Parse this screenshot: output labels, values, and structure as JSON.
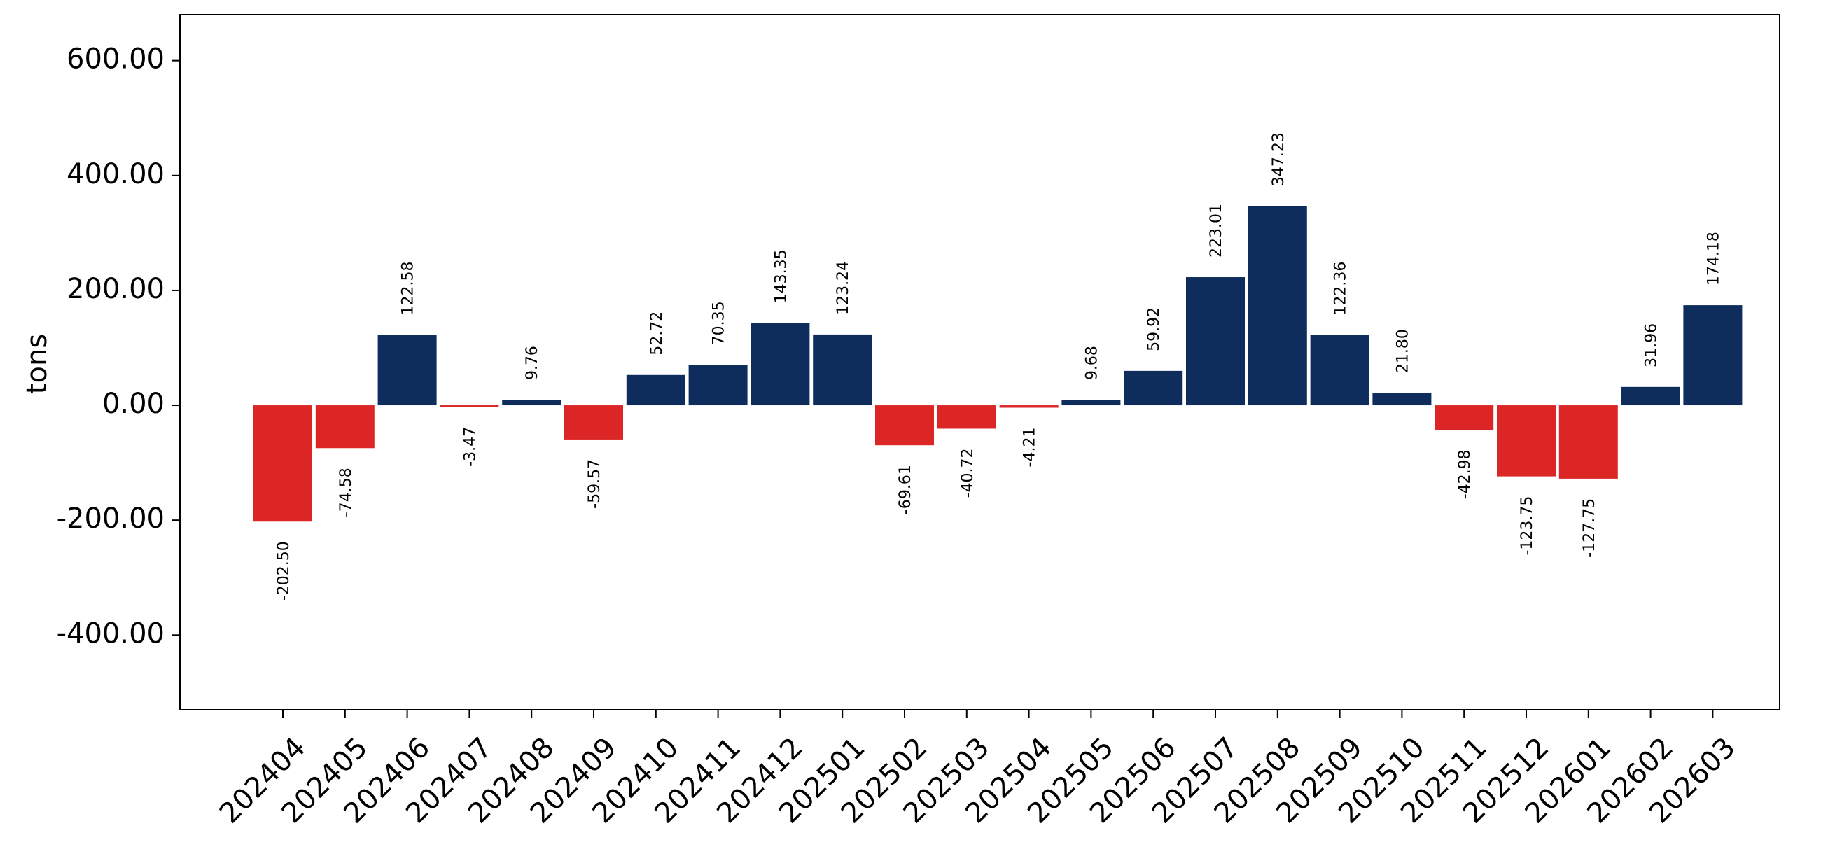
{
  "chart_data": {
    "type": "bar",
    "title": "",
    "xlabel": "",
    "ylabel": "tons",
    "ylim": [
      -530,
      680
    ],
    "yticks": [
      -400,
      -200,
      0,
      200,
      400,
      600
    ],
    "ytick_labels": [
      "-400.00",
      "-200.00",
      "0.00",
      "200.00",
      "400.00",
      "600.00"
    ],
    "grid": false,
    "legend": "none",
    "colors": {
      "positive": "#0e2d5c",
      "negative": "#dc2626"
    },
    "categories": [
      "202404",
      "202405",
      "202406",
      "202407",
      "202408",
      "202409",
      "202410",
      "202411",
      "202412",
      "202501",
      "202502",
      "202503",
      "202504",
      "202505",
      "202506",
      "202507",
      "202508",
      "202509",
      "202510",
      "202511",
      "202512",
      "202601",
      "202602",
      "202603"
    ],
    "values": [
      -202.5,
      -74.58,
      122.58,
      -3.47,
      9.76,
      -59.57,
      52.72,
      70.35,
      143.35,
      123.24,
      -69.61,
      -40.72,
      -4.21,
      9.68,
      59.92,
      223.01,
      347.23,
      122.36,
      21.8,
      -42.98,
      -123.75,
      -127.75,
      31.96,
      174.18
    ],
    "value_labels": [
      "-202.50",
      "-74.58",
      "122.58",
      "-3.47",
      "9.76",
      "-59.57",
      "52.72",
      "70.35",
      "143.35",
      "123.24",
      "-69.61",
      "-40.72",
      "-4.21",
      "9.68",
      "59.92",
      "223.01",
      "347.23",
      "122.36",
      "21.80",
      "-42.98",
      "-123.75",
      "-127.75",
      "31.96",
      "174.18"
    ]
  }
}
